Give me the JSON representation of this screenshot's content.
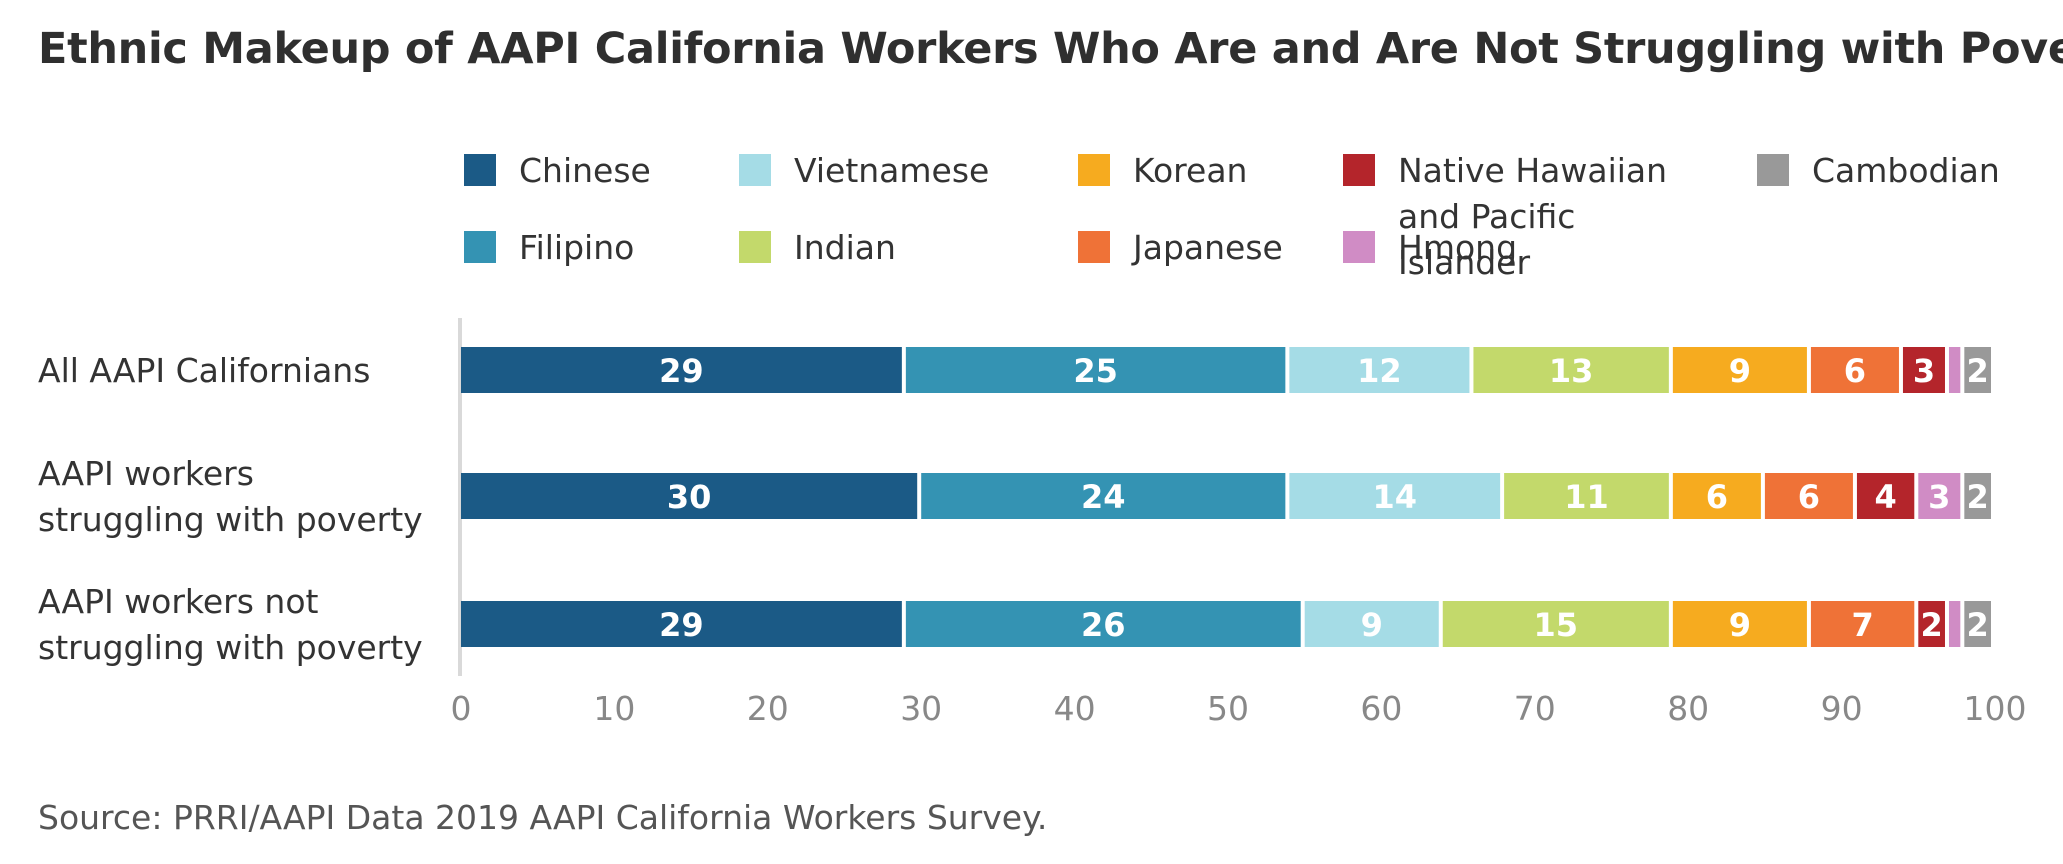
{
  "chart_data": {
    "type": "bar",
    "orientation": "horizontal",
    "stacked": true,
    "title": "Ethnic Makeup of AAPI California Workers Who Are and Are Not Struggling with Poverty",
    "source": "Source: PRRI/AAPI Data 2019 AAPI California Workers Survey.",
    "categories": [
      [
        "All AAPI Californians"
      ],
      [
        "AAPI workers",
        "struggling with poverty"
      ],
      [
        "AAPI workers not",
        "struggling with poverty"
      ]
    ],
    "series": [
      {
        "name": [
          "Chinese"
        ],
        "color": "#1b5a86",
        "values": [
          29,
          30,
          29
        ]
      },
      {
        "name": [
          "Filipino"
        ],
        "color": "#3493b3",
        "values": [
          25,
          24,
          26
        ]
      },
      {
        "name": [
          "Vietnamese"
        ],
        "color": "#a5dce6",
        "values": [
          12,
          14,
          9
        ]
      },
      {
        "name": [
          "Indian"
        ],
        "color": "#c3d96b",
        "values": [
          13,
          11,
          15
        ]
      },
      {
        "name": [
          "Korean"
        ],
        "color": "#f6ab1f",
        "values": [
          9,
          6,
          9
        ]
      },
      {
        "name": [
          "Japanese"
        ],
        "color": "#ef7237",
        "values": [
          6,
          6,
          7
        ]
      },
      {
        "name": [
          "Native Hawaiian",
          "and Pacific",
          "Islander"
        ],
        "color": "#b4252b",
        "values": [
          3,
          4,
          2
        ]
      },
      {
        "name": [
          "Hmong"
        ],
        "color": "#d08cc5",
        "values": [
          1,
          3,
          1
        ]
      },
      {
        "name": [
          "Cambodian"
        ],
        "color": "#999999",
        "values": [
          2,
          2,
          2
        ]
      }
    ],
    "data_labels": [
      [
        "29",
        "25",
        "12",
        "13",
        "9",
        "6",
        "3",
        "",
        "2"
      ],
      [
        "30",
        "24",
        "14",
        "11",
        "6",
        "6",
        "4",
        "3",
        "2"
      ],
      [
        "29",
        "26",
        "9",
        "15",
        "9",
        "7",
        "2",
        "",
        "2"
      ]
    ],
    "xlim": [
      0,
      100
    ],
    "xticks": [
      0,
      10,
      20,
      30,
      40,
      50,
      60,
      70,
      80,
      90,
      100
    ],
    "xlabel": "",
    "ylabel": "",
    "grid": false,
    "legend_position": "top"
  }
}
